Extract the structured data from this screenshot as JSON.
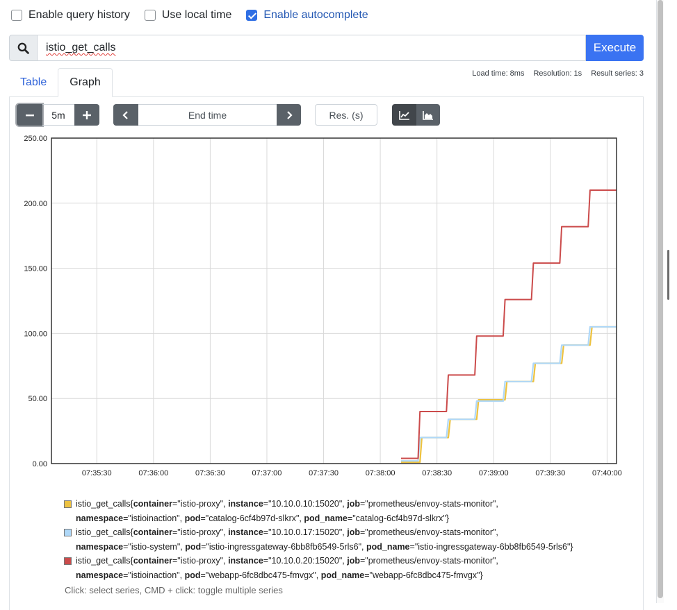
{
  "options": [
    {
      "label": "Enable query history",
      "checked": false
    },
    {
      "label": "Use local time",
      "checked": false
    },
    {
      "label": "Enable autocomplete",
      "checked": true
    }
  ],
  "query": {
    "value": "istio_get_calls",
    "execute_label": "Execute",
    "icon": "search-icon"
  },
  "stats": {
    "load_time": "Load time: 8ms",
    "resolution": "Resolution: 1s",
    "result_series": "Result series: 3"
  },
  "tabs": [
    {
      "label": "Table",
      "active": false
    },
    {
      "label": "Graph",
      "active": true
    }
  ],
  "controls": {
    "range_value": "5m",
    "range_minus_icon": "minus-icon",
    "range_plus_icon": "plus-icon",
    "end_time_placeholder": "End time",
    "prev_icon": "chevron-left-icon",
    "next_icon": "chevron-right-icon",
    "resolution_placeholder": "Res. (s)",
    "unstacked_icon": "line-chart-icon",
    "stacked_icon": "area-chart-icon"
  },
  "chart_data": {
    "type": "line",
    "y_ticks": [
      "0.00",
      "50.00",
      "100.00",
      "150.00",
      "200.00",
      "250.00"
    ],
    "ylim": [
      0,
      250
    ],
    "x_ticks": [
      "07:35:30",
      "07:36:00",
      "07:36:30",
      "07:37:00",
      "07:37:30",
      "07:38:00",
      "07:38:30",
      "07:39:00",
      "07:39:30",
      "07:40:00"
    ],
    "x_range": [
      "07:35:06",
      "07:40:05"
    ],
    "grid": true,
    "series": [
      {
        "color": "#edc240",
        "name": "istio_get_calls{container=\"istio-proxy\", instance=\"10.10.0.10:15020\", job=\"prometheus/envoy-stats-monitor\", namespace=\"istioinaction\", pod=\"catalog-6cf4b97d-slkrx\", pod_name=\"catalog-6cf4b97d-slkrx\"}",
        "points": [
          [
            "07:38:11",
            1
          ],
          [
            "07:38:21",
            1
          ],
          [
            "07:38:22",
            20
          ],
          [
            "07:38:36",
            20
          ],
          [
            "07:38:37",
            34
          ],
          [
            "07:38:51",
            34
          ],
          [
            "07:38:52",
            49
          ],
          [
            "07:39:06",
            49
          ],
          [
            "07:39:07",
            63
          ],
          [
            "07:39:21",
            63
          ],
          [
            "07:39:22",
            77
          ],
          [
            "07:39:36",
            77
          ],
          [
            "07:39:37",
            91
          ],
          [
            "07:39:51",
            91
          ],
          [
            "07:39:52",
            105
          ],
          [
            "07:40:05",
            105
          ]
        ]
      },
      {
        "color": "#afd8f8",
        "name": "istio_get_calls{container=\"istio-proxy\", instance=\"10.10.0.17:15020\", job=\"prometheus/envoy-stats-monitor\", namespace=\"istio-system\", pod=\"istio-ingressgateway-6bb8fb6549-5rls6\", pod_name=\"istio-ingressgateway-6bb8fb6549-5rls6\"}",
        "points": [
          [
            "07:38:11",
            2
          ],
          [
            "07:38:20",
            2
          ],
          [
            "07:38:21",
            20
          ],
          [
            "07:38:35",
            20
          ],
          [
            "07:38:36",
            34
          ],
          [
            "07:38:50",
            34
          ],
          [
            "07:38:51",
            48
          ],
          [
            "07:39:05",
            48
          ],
          [
            "07:39:06",
            63
          ],
          [
            "07:39:20",
            63
          ],
          [
            "07:39:21",
            77
          ],
          [
            "07:39:35",
            77
          ],
          [
            "07:39:36",
            91
          ],
          [
            "07:39:50",
            91
          ],
          [
            "07:39:51",
            105
          ],
          [
            "07:40:05",
            105
          ]
        ]
      },
      {
        "color": "#cb4b4b",
        "name": "istio_get_calls{container=\"istio-proxy\", instance=\"10.10.0.20:15020\", job=\"prometheus/envoy-stats-monitor\", namespace=\"istioinaction\", pod=\"webapp-6fc8dbc475-fmvgx\", pod_name=\"webapp-6fc8dbc475-fmvgx\"}",
        "points": [
          [
            "07:38:11",
            4
          ],
          [
            "07:38:20",
            4
          ],
          [
            "07:38:21",
            40
          ],
          [
            "07:38:35",
            40
          ],
          [
            "07:38:36",
            68
          ],
          [
            "07:38:50",
            68
          ],
          [
            "07:38:51",
            98
          ],
          [
            "07:39:05",
            98
          ],
          [
            "07:39:06",
            126
          ],
          [
            "07:39:20",
            126
          ],
          [
            "07:39:21",
            154
          ],
          [
            "07:39:35",
            154
          ],
          [
            "07:39:36",
            182
          ],
          [
            "07:39:50",
            182
          ],
          [
            "07:39:51",
            210
          ],
          [
            "07:40:05",
            210
          ]
        ]
      }
    ]
  },
  "legend": [
    {
      "color": "#edc240",
      "metric": "istio_get_calls{",
      "labels": [
        [
          "container",
          "\"istio-proxy\", "
        ],
        [
          "instance",
          "\"10.10.0.10:15020\", "
        ],
        [
          "job",
          "\"prometheus/envoy-stats-monitor\", "
        ],
        [
          "namespace",
          "\"istioinaction\", "
        ],
        [
          "pod",
          "\"catalog-6cf4b97d-slkrx\", "
        ],
        [
          "pod_name",
          "\"catalog-6cf4b97d-slkrx\"}"
        ]
      ],
      "break_after": 3
    },
    {
      "color": "#afd8f8",
      "metric": "istio_get_calls{",
      "labels": [
        [
          "container",
          "\"istio-proxy\", "
        ],
        [
          "instance",
          "\"10.10.0.17:15020\", "
        ],
        [
          "job",
          "\"prometheus/envoy-stats-monitor\", "
        ],
        [
          "namespace",
          "\"istio-system\", "
        ],
        [
          "pod",
          "\"istio-ingressgateway-6bb8fb6549-5rls6\", "
        ],
        [
          "pod_name",
          "\"istio-ingressgateway-6bb8fb6549-5rls6\"}"
        ]
      ],
      "break_after": 3
    },
    {
      "color": "#cb4b4b",
      "metric": "istio_get_calls{",
      "labels": [
        [
          "container",
          "\"istio-proxy\", "
        ],
        [
          "instance",
          "\"10.10.0.20:15020\", "
        ],
        [
          "job",
          "\"prometheus/envoy-stats-monitor\", "
        ],
        [
          "namespace",
          "\"istioinaction\", "
        ],
        [
          "pod",
          "\"webapp-6fc8dbc475-fmvgx\", "
        ],
        [
          "pod_name",
          "\"webapp-6fc8dbc475-fmvgx\"}"
        ]
      ],
      "break_after": 3
    }
  ],
  "hint": "Click: select series, CMD + click: toggle multiple series"
}
